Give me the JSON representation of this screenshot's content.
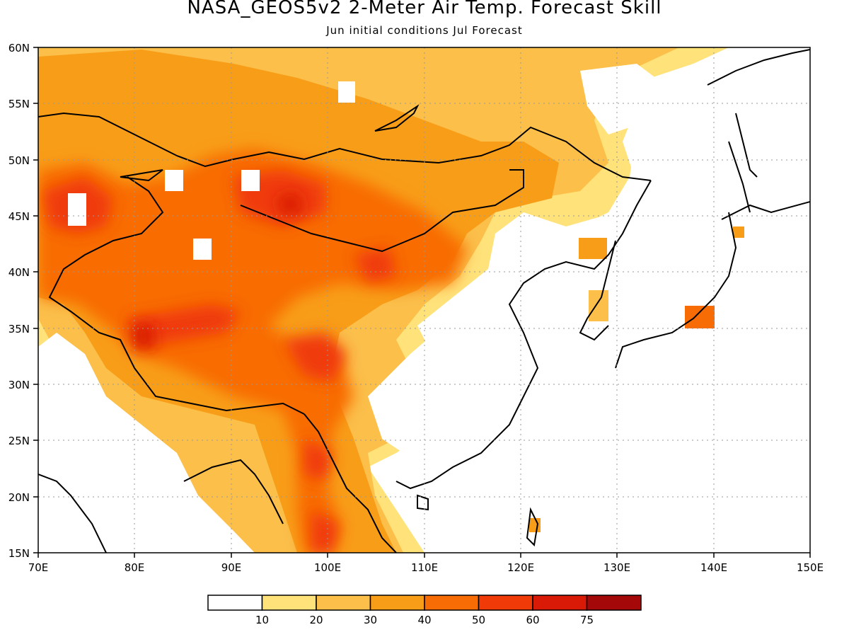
{
  "title": "NASA_GEOS5v2 2-Meter Air Temp. Forecast Skill",
  "subtitle": "Jun initial conditions  Jul Forecast",
  "lon_ticks": [
    "70E",
    "80E",
    "90E",
    "100E",
    "110E",
    "120E",
    "130E",
    "140E",
    "150E"
  ],
  "lat_ticks": [
    "60N",
    "55N",
    "50N",
    "45N",
    "40N",
    "35N",
    "30N",
    "25N",
    "20N",
    "15N"
  ],
  "colorbar": {
    "colors": [
      "#ffffff",
      "#ffe27a",
      "#fbbf4a",
      "#f89d18",
      "#f86c06",
      "#f03a08",
      "#d91a06",
      "#a50808"
    ],
    "labels": [
      "10",
      "20",
      "30",
      "40",
      "50",
      "60",
      "75"
    ]
  }
}
